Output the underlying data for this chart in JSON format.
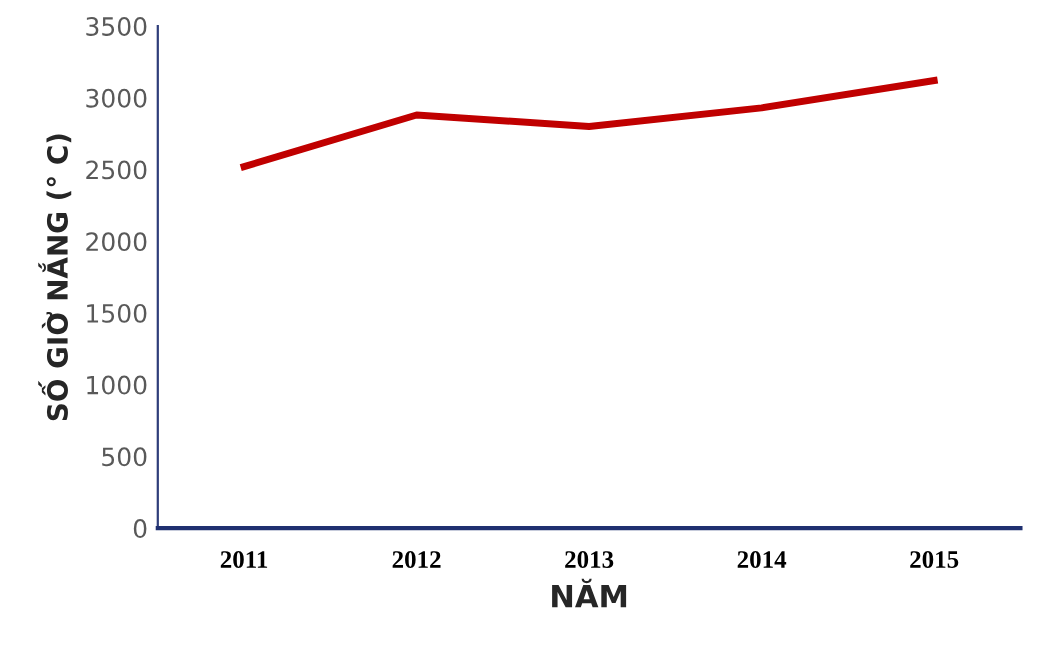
{
  "chart_data": {
    "type": "line",
    "xlabel": "NĂM",
    "ylabel": "SỐ GIỜ NẮNG (° C)",
    "categories": [
      "2011",
      "2012",
      "2013",
      "2014",
      "2015"
    ],
    "series": [
      {
        "color": "#c00000",
        "values": [
          2520,
          2880,
          2800,
          2930,
          3120
        ]
      }
    ],
    "ylim": [
      0,
      3500
    ],
    "yticks": [
      0,
      500,
      1000,
      1500,
      2000,
      2500,
      3000,
      3500
    ],
    "grid": false,
    "marker": "none",
    "line_style": "solid"
  }
}
